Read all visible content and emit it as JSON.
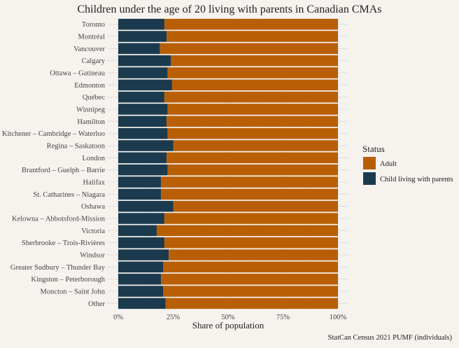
{
  "chart_data": {
    "type": "bar",
    "orientation": "horizontal",
    "stacked": true,
    "normalized": true,
    "title": "Children under the age of 20 living with parents in Canadian CMAs",
    "xlabel": "Share of population",
    "ylabel": "",
    "xlim": [
      0,
      1
    ],
    "x_ticks": [
      "0%",
      "25%",
      "50%",
      "75%",
      "100%"
    ],
    "grid": true,
    "categories": [
      "Toronto",
      "Montréal",
      "Vancouver",
      "Calgary",
      "Ottawa – Gatineau",
      "Edmonton",
      "Québec",
      "Winnipeg",
      "Hamilton",
      "Kitchener – Cambridge – Waterloo",
      "Regina – Saskatoon",
      "London",
      "Brantford – Guelph – Barrie",
      "Halifax",
      "St. Catharines – Niagara",
      "Oshawa",
      "Kelowna – Abbotsford-Mission",
      "Victoria",
      "Sherbrooke – Trois-Rivières",
      "Windsor",
      "Greater Sudbury – Thunder Bay",
      "Kingston – Peterborough",
      "Moncton – Saint John",
      "Other"
    ],
    "series": [
      {
        "name": "Child living with parents",
        "color": "#1b3a4e",
        "values": [
          0.21,
          0.22,
          0.19,
          0.24,
          0.225,
          0.245,
          0.21,
          0.225,
          0.22,
          0.225,
          0.25,
          0.22,
          0.225,
          0.195,
          0.195,
          0.25,
          0.21,
          0.175,
          0.21,
          0.23,
          0.205,
          0.195,
          0.205,
          0.215
        ]
      },
      {
        "name": "Adult",
        "color": "#b85f05",
        "values": [
          0.79,
          0.78,
          0.81,
          0.76,
          0.775,
          0.755,
          0.79,
          0.775,
          0.78,
          0.775,
          0.75,
          0.78,
          0.775,
          0.805,
          0.805,
          0.75,
          0.79,
          0.825,
          0.79,
          0.77,
          0.795,
          0.805,
          0.795,
          0.785
        ]
      }
    ],
    "legend": {
      "title": "Status",
      "position": "right",
      "entries": [
        "Adult",
        "Child living with parents"
      ]
    },
    "caption": "StatCan Census 2021 PUMF (individuals)"
  }
}
